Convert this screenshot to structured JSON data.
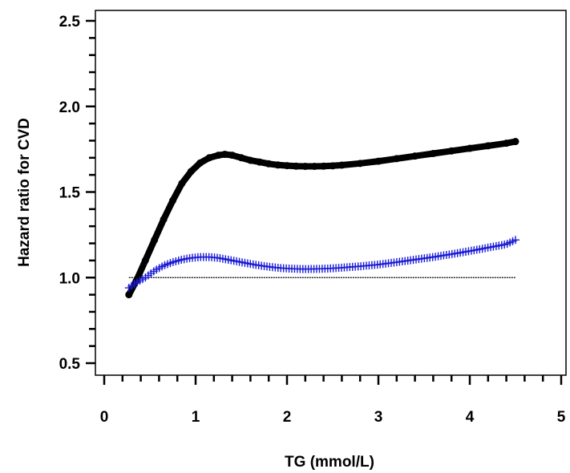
{
  "chart_data": {
    "type": "line",
    "xlabel": "TG (mmol/L)",
    "ylabel": "Hazard ratio for CVD",
    "xlim": [
      0,
      5
    ],
    "ylim": [
      0.5,
      2.5
    ],
    "x_ticks": [
      "0",
      "1",
      "2",
      "3",
      "4",
      "5"
    ],
    "y_ticks": [
      "0.5",
      "1.0",
      "1.5",
      "2.0",
      "2.5"
    ],
    "reference_line": {
      "y": 1.0,
      "x_range": [
        0.27,
        4.5
      ],
      "style": "dotted",
      "color": "#000000"
    },
    "series": [
      {
        "color": "#000000",
        "marker": "circle",
        "x": [
          0.27,
          0.35,
          0.45,
          0.55,
          0.65,
          0.75,
          0.85,
          0.95,
          1.05,
          1.15,
          1.25,
          1.32,
          1.4,
          1.5,
          1.6,
          1.7,
          1.8,
          1.9,
          2.0,
          2.1,
          2.2,
          2.3,
          2.4,
          2.5,
          2.6,
          2.8,
          3.0,
          3.2,
          3.4,
          3.6,
          3.8,
          4.0,
          4.2,
          4.4,
          4.5
        ],
        "y": [
          0.9,
          0.98,
          1.1,
          1.22,
          1.34,
          1.45,
          1.55,
          1.62,
          1.67,
          1.7,
          1.715,
          1.72,
          1.715,
          1.7,
          1.685,
          1.675,
          1.665,
          1.658,
          1.654,
          1.651,
          1.65,
          1.65,
          1.651,
          1.653,
          1.657,
          1.667,
          1.68,
          1.695,
          1.71,
          1.725,
          1.74,
          1.755,
          1.77,
          1.785,
          1.795
        ]
      },
      {
        "color": "#1a1ad6",
        "marker": "plus",
        "x": [
          0.27,
          0.35,
          0.45,
          0.55,
          0.65,
          0.75,
          0.85,
          0.95,
          1.05,
          1.15,
          1.25,
          1.35,
          1.45,
          1.55,
          1.65,
          1.75,
          1.85,
          1.95,
          2.05,
          2.15,
          2.25,
          2.35,
          2.45,
          2.55,
          2.65,
          2.8,
          3.0,
          3.2,
          3.4,
          3.6,
          3.8,
          4.0,
          4.2,
          4.4,
          4.5
        ],
        "y": [
          0.94,
          0.97,
          1.0,
          1.04,
          1.07,
          1.09,
          1.105,
          1.115,
          1.12,
          1.12,
          1.115,
          1.105,
          1.095,
          1.085,
          1.075,
          1.067,
          1.06,
          1.055,
          1.052,
          1.05,
          1.05,
          1.051,
          1.053,
          1.056,
          1.06,
          1.066,
          1.076,
          1.09,
          1.105,
          1.12,
          1.137,
          1.155,
          1.175,
          1.195,
          1.22
        ]
      }
    ]
  }
}
